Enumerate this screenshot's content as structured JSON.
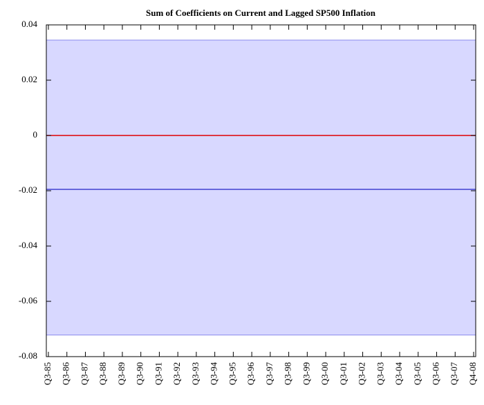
{
  "chart_data": {
    "type": "band",
    "title": "Sum of Coefficients on Current and Lagged SP500 Inflation",
    "categories": [
      "Q3-85",
      "Q3-86",
      "Q3-87",
      "Q3-88",
      "Q3-89",
      "Q3-90",
      "Q3-91",
      "Q3-92",
      "Q3-93",
      "Q3-94",
      "Q3-95",
      "Q3-96",
      "Q3-97",
      "Q3-98",
      "Q3-99",
      "Q3-00",
      "Q3-01",
      "Q3-02",
      "Q3-03",
      "Q3-04",
      "Q3-05",
      "Q3-06",
      "Q3-07",
      "Q4-08"
    ],
    "band": {
      "color": "#d8d8ff",
      "edge_color": "#8888ee",
      "upper": [
        0.0345,
        0.0345,
        0.0345,
        0.0345,
        0.0345,
        0.0345,
        0.0345,
        0.0345,
        0.0345,
        0.0345,
        0.0345,
        0.0345,
        0.0345,
        0.0345,
        0.0345,
        0.0345,
        0.0345,
        0.0345,
        0.0345,
        0.0345,
        0.0345,
        0.0345,
        0.0345,
        0.0345
      ],
      "lower": [
        -0.0722,
        -0.0722,
        -0.0722,
        -0.0722,
        -0.0722,
        -0.0722,
        -0.0722,
        -0.0722,
        -0.0722,
        -0.0722,
        -0.0722,
        -0.0722,
        -0.0722,
        -0.0722,
        -0.0722,
        -0.0722,
        -0.0722,
        -0.0722,
        -0.0722,
        -0.0722,
        -0.0722,
        -0.0722,
        -0.0722,
        -0.0722
      ]
    },
    "series": [
      {
        "color": "#4040d0",
        "values": [
          -0.0195,
          -0.0195,
          -0.0195,
          -0.0195,
          -0.0195,
          -0.0195,
          -0.0195,
          -0.0195,
          -0.0195,
          -0.0195,
          -0.0195,
          -0.0195,
          -0.0195,
          -0.0195,
          -0.0195,
          -0.0195,
          -0.0195,
          -0.0195,
          -0.0195,
          -0.0195,
          -0.0195,
          -0.0195,
          -0.0195,
          -0.0195
        ]
      },
      {
        "color": "#e00000",
        "values": [
          0,
          0,
          0,
          0,
          0,
          0,
          0,
          0,
          0,
          0,
          0,
          0,
          0,
          0,
          0,
          0,
          0,
          0,
          0,
          0,
          0,
          0,
          0,
          0
        ]
      }
    ],
    "ylim": [
      -0.08,
      0.04
    ],
    "yticks": [
      -0.08,
      -0.06,
      -0.04,
      -0.02,
      0,
      0.02,
      0.04
    ]
  }
}
